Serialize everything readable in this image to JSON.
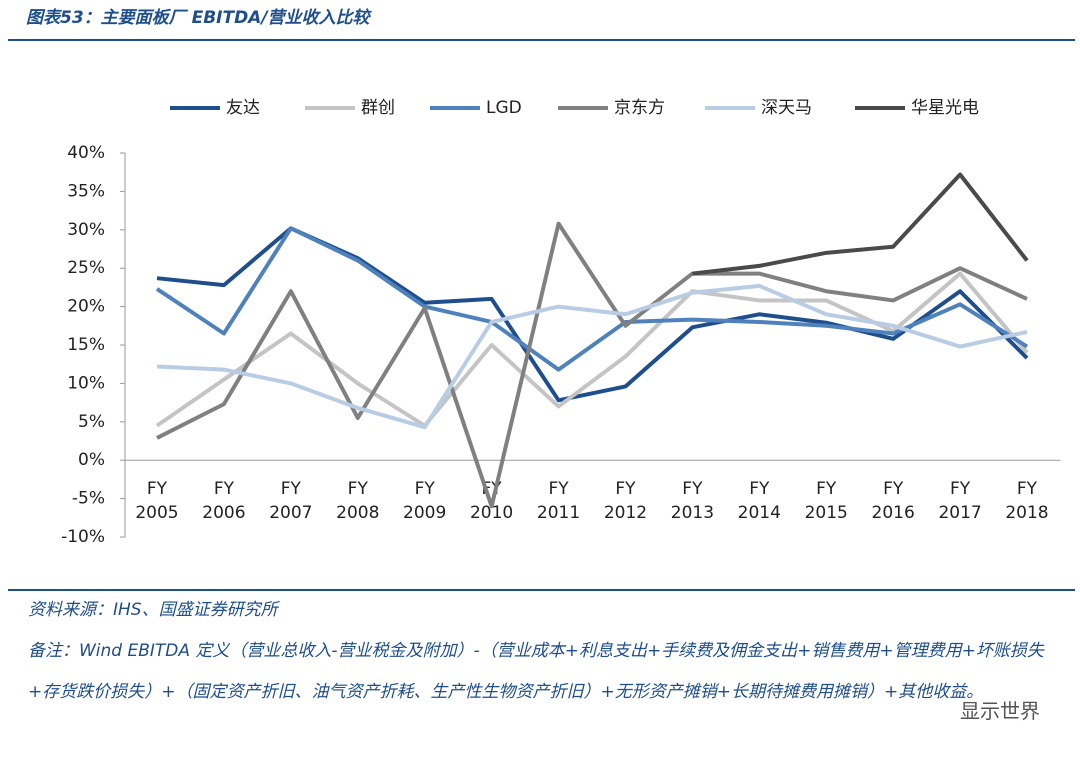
{
  "chart_data": {
    "type": "line",
    "title": "图表53：主要面板厂 EBITDA/营业收入比较",
    "categories": [
      "FY 2005",
      "FY 2006",
      "FY 2007",
      "FY 2008",
      "FY 2009",
      "FY 2010",
      "FY 2011",
      "FY 2012",
      "FY 2013",
      "FY 2014",
      "FY 2015",
      "FY 2016",
      "FY 2017",
      "FY 2018"
    ],
    "series": [
      {
        "name": "友达",
        "color": "#1f4e8c",
        "values": [
          23.7,
          22.8,
          30.2,
          26.3,
          20.5,
          21.0,
          7.8,
          9.6,
          17.3,
          19.0,
          17.9,
          15.8,
          22.0,
          13.3
        ]
      },
      {
        "name": "群创",
        "color": "#c4c4c4",
        "values": [
          4.5,
          10.5,
          16.5,
          10.0,
          4.5,
          15.0,
          7.0,
          13.5,
          22.0,
          20.8,
          20.8,
          16.8,
          24.3,
          14.0
        ]
      },
      {
        "name": "LGD",
        "color": "#4f81bd",
        "values": [
          22.3,
          16.5,
          30.2,
          26.0,
          20.0,
          18.0,
          11.8,
          18.0,
          18.3,
          18.0,
          17.5,
          16.5,
          20.3,
          14.8
        ]
      },
      {
        "name": "京东方",
        "color": "#808080",
        "values": [
          2.9,
          7.3,
          22.0,
          5.5,
          19.8,
          -6.0,
          30.8,
          17.5,
          24.3,
          24.3,
          22.0,
          20.8,
          25.0,
          21.0
        ]
      },
      {
        "name": "深天马",
        "color": "#b8cce4",
        "values": [
          12.2,
          11.8,
          10.0,
          6.8,
          4.3,
          18.0,
          20.0,
          19.0,
          21.8,
          22.7,
          19.0,
          17.5,
          14.8,
          16.7
        ]
      },
      {
        "name": "华星光电",
        "color": "#4a4a4a",
        "values": [
          null,
          null,
          null,
          null,
          null,
          null,
          null,
          null,
          24.3,
          25.3,
          27.0,
          27.8,
          37.2,
          26.0
        ]
      }
    ],
    "ylim": [
      -10,
      40
    ],
    "yticks": [
      {
        "value": -10,
        "label": "-10%"
      },
      {
        "value": -5,
        "label": "-5%"
      },
      {
        "value": 0,
        "label": "0%"
      },
      {
        "value": 5,
        "label": "5%"
      },
      {
        "value": 10,
        "label": "10%"
      },
      {
        "value": 15,
        "label": "15%"
      },
      {
        "value": 20,
        "label": "20%"
      },
      {
        "value": 25,
        "label": "25%"
      },
      {
        "value": 30,
        "label": "30%"
      },
      {
        "value": 35,
        "label": "35%"
      },
      {
        "value": 40,
        "label": "40%"
      }
    ],
    "grid": false,
    "legend": "top",
    "source": "资料来源：IHS、国盛证券研究所",
    "note": "备注：Wind EBITDA 定义（营业总收入-营业税金及附加）-（营业成本+利息支出+手续费及佣金支出+销售费用+管理费用+坏账损失+存货跌价损失）+（固定资产折旧、油气资产折耗、生产性生物资产折旧）+无形资产摊销+长期待摊费用摊销）+其他收益。",
    "watermark": "显示世界"
  }
}
